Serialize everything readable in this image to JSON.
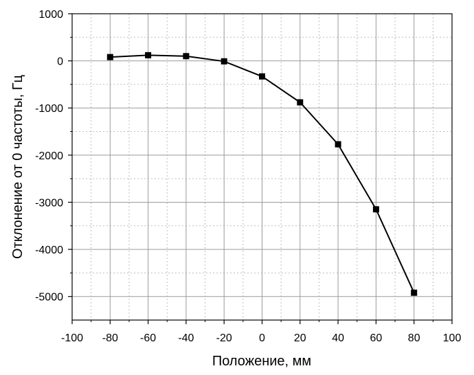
{
  "chart_data": {
    "type": "line",
    "title": "",
    "xlabel": "Положение, мм",
    "ylabel": "Отклонение от 0 частоты, Гц",
    "xlim": [
      -100,
      100
    ],
    "ylim": [
      -5500,
      1000
    ],
    "x_ticks": [
      -100,
      -80,
      -60,
      -40,
      -20,
      0,
      20,
      40,
      60,
      80,
      100
    ],
    "x_tick_labels": [
      "-100",
      "-80",
      "-60",
      "-40",
      "-20",
      "0",
      "20",
      "40",
      "60",
      "80",
      "100"
    ],
    "y_ticks": [
      1000,
      0,
      -1000,
      -2000,
      -3000,
      -4000,
      -5000
    ],
    "y_tick_labels": [
      "1000",
      "0",
      "-1000",
      "-2000",
      "-3000",
      "-4000",
      "-5000"
    ],
    "grid": true,
    "minor_grid": true,
    "marker": "square",
    "line_color": "#000000",
    "series": [
      {
        "x": [
          -80,
          -60,
          -40,
          -20,
          0,
          20,
          40,
          60,
          80
        ],
        "y": [
          80,
          120,
          100,
          -10,
          -330,
          -880,
          -1770,
          -3150,
          -4920
        ]
      }
    ]
  }
}
